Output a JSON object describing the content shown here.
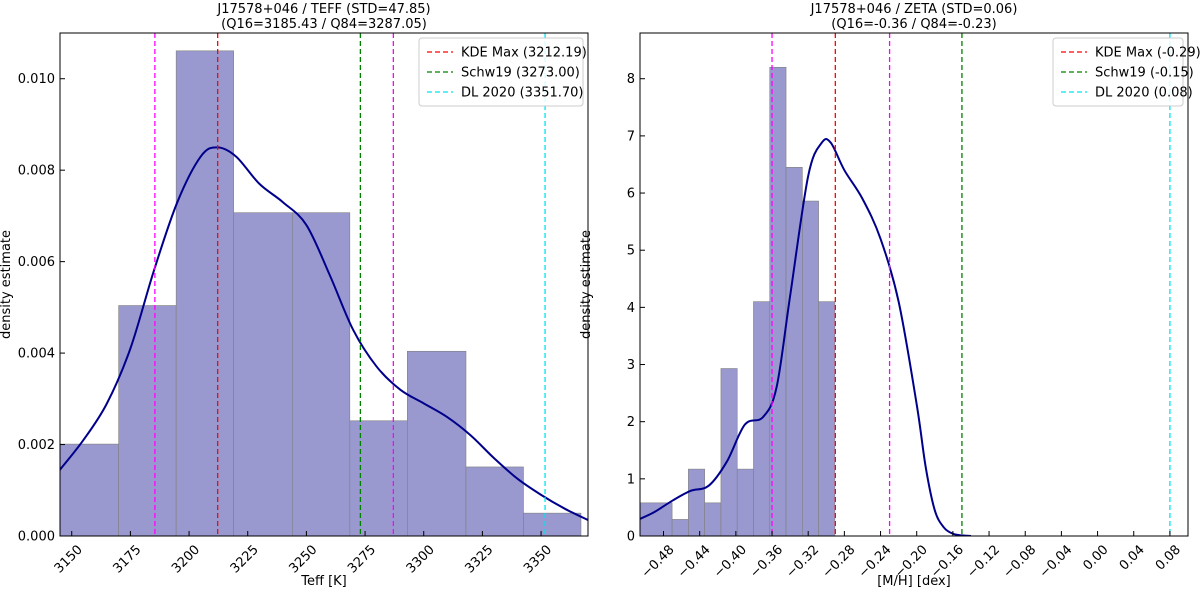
{
  "chart_data": [
    {
      "type": "bar",
      "title_line1": "J17578+046 / TEFF (STD=47.85)",
      "title_line2": "(Q16=3185.43 / Q84=3287.05)",
      "xlabel": "Teff [K]",
      "ylabel": "density estimate",
      "xlim": [
        3145,
        3370
      ],
      "ylim": [
        0,
        0.011
      ],
      "xticks": [
        3150,
        3175,
        3200,
        3225,
        3250,
        3275,
        3300,
        3325,
        3350
      ],
      "xtick_labels": [
        "3150",
        "3175",
        "3200",
        "3225",
        "3250",
        "3275",
        "3300",
        "3325",
        "3350"
      ],
      "xtick_rotation": 45,
      "yticks": [
        0,
        0.002,
        0.004,
        0.006,
        0.008,
        0.01
      ],
      "ytick_labels": [
        "0.000",
        "0.002",
        "0.004",
        "0.006",
        "0.008",
        "0.010"
      ],
      "bins": [
        {
          "x0": 3145,
          "x1": 3170,
          "value": 0.00201
        },
        {
          "x0": 3170,
          "x1": 3194.5,
          "value": 0.00504
        },
        {
          "x0": 3194.5,
          "x1": 3219,
          "value": 0.01061
        },
        {
          "x0": 3219,
          "x1": 3244,
          "value": 0.00707
        },
        {
          "x0": 3244,
          "x1": 3268.5,
          "value": 0.00707
        },
        {
          "x0": 3268.5,
          "x1": 3293,
          "value": 0.00252
        },
        {
          "x0": 3293,
          "x1": 3318,
          "value": 0.00404
        },
        {
          "x0": 3318,
          "x1": 3342.5,
          "value": 0.00151
        },
        {
          "x0": 3342.5,
          "x1": 3367,
          "value": 0.0005
        }
      ],
      "kde": {
        "x": [
          3145,
          3155,
          3165,
          3175,
          3185,
          3195,
          3205,
          3212,
          3220,
          3230,
          3240,
          3250,
          3260,
          3270,
          3280,
          3290,
          3300,
          3310,
          3320,
          3330,
          3340,
          3350,
          3360,
          3370
        ],
        "y": [
          0.00145,
          0.0021,
          0.0029,
          0.0041,
          0.0058,
          0.0073,
          0.0083,
          0.0085,
          0.0083,
          0.0077,
          0.0073,
          0.0068,
          0.0057,
          0.0045,
          0.0037,
          0.0032,
          0.0029,
          0.0026,
          0.0022,
          0.0017,
          0.00125,
          0.0009,
          0.0006,
          0.00035
        ]
      },
      "vlines": [
        {
          "x": 3185.43,
          "color": "#ff00ff",
          "label": ""
        },
        {
          "x": 3212.19,
          "color": "#ff0000",
          "label": "KDE Max (3212.19)"
        },
        {
          "x": 3273.0,
          "color": "#008000",
          "label": "Schw19 (3273.00)"
        },
        {
          "x": 3287.05,
          "color": "#ff00ff",
          "label": ""
        },
        {
          "x": 3351.7,
          "color": "#00e5ee",
          "label": "DL 2020 (3351.70)"
        }
      ],
      "legend_position": "top-right",
      "bar_color": "#9999cf",
      "kde_color": "#00008b"
    },
    {
      "type": "bar",
      "title_line1": "J17578+046 / ZETA (STD=0.06)",
      "title_line2": "(Q16=-0.36 / Q84=-0.23)",
      "xlabel": "[M/H] [dex]",
      "ylabel": "density estimate",
      "xlim": [
        -0.506,
        0.1
      ],
      "ylim": [
        0,
        8.8
      ],
      "xticks": [
        -0.48,
        -0.44,
        -0.4,
        -0.36,
        -0.32,
        -0.28,
        -0.24,
        -0.2,
        -0.16,
        -0.12,
        -0.08,
        -0.04,
        0.0,
        0.04,
        0.08
      ],
      "xtick_labels": [
        "−0.48",
        "−0.44",
        "−0.40",
        "−0.36",
        "−0.32",
        "−0.28",
        "−0.24",
        "−0.20",
        "−0.16",
        "−0.12",
        "−0.08",
        "−0.04",
        "0.00",
        "0.04",
        "0.08"
      ],
      "xtick_rotation": 45,
      "yticks": [
        0,
        1,
        2,
        3,
        4,
        5,
        6,
        7,
        8
      ],
      "ytick_labels": [
        "0",
        "1",
        "2",
        "3",
        "4",
        "5",
        "6",
        "7",
        "8"
      ],
      "bins": [
        {
          "x0": -0.506,
          "x1": -0.4705,
          "value": 0.58
        },
        {
          "x0": -0.4705,
          "x1": -0.4525,
          "value": 0.29
        },
        {
          "x0": -0.4525,
          "x1": -0.4345,
          "value": 1.17
        },
        {
          "x0": -0.4345,
          "x1": -0.4165,
          "value": 0.58
        },
        {
          "x0": -0.4165,
          "x1": -0.3985,
          "value": 2.93
        },
        {
          "x0": -0.3985,
          "x1": -0.3805,
          "value": 1.17
        },
        {
          "x0": -0.3805,
          "x1": -0.3625,
          "value": 4.1
        },
        {
          "x0": -0.3625,
          "x1": -0.3445,
          "value": 8.2
        },
        {
          "x0": -0.3445,
          "x1": -0.3265,
          "value": 6.45
        },
        {
          "x0": -0.3265,
          "x1": -0.3085,
          "value": 5.86
        },
        {
          "x0": -0.3085,
          "x1": -0.2905,
          "value": 4.1
        }
      ],
      "kde": {
        "x": [
          -0.506,
          -0.49,
          -0.47,
          -0.45,
          -0.43,
          -0.41,
          -0.39,
          -0.37,
          -0.355,
          -0.34,
          -0.32,
          -0.305,
          -0.295,
          -0.28,
          -0.26,
          -0.24,
          -0.22,
          -0.2,
          -0.19,
          -0.18,
          -0.17,
          -0.16,
          -0.15,
          -0.14
        ],
        "y": [
          0.3,
          0.42,
          0.62,
          0.79,
          0.88,
          1.3,
          1.95,
          2.08,
          2.6,
          4.2,
          6.3,
          6.88,
          6.88,
          6.4,
          5.9,
          5.2,
          4.1,
          2.3,
          1.2,
          0.45,
          0.15,
          0.04,
          0.01,
          0.0
        ]
      },
      "vlines": [
        {
          "x": -0.36,
          "color": "#ff00ff",
          "label": ""
        },
        {
          "x": -0.29,
          "color": "#ff0000",
          "label": "KDE Max (-0.29)"
        },
        {
          "x": -0.23,
          "color": "#ff00ff",
          "label": ""
        },
        {
          "x": -0.15,
          "color": "#008000",
          "label": "Schw19 (-0.15)"
        },
        {
          "x": 0.08,
          "color": "#00e5ee",
          "label": "DL 2020 (0.08)"
        }
      ],
      "legend_position": "top-right",
      "bar_color": "#9999cf",
      "kde_color": "#00008b"
    }
  ]
}
